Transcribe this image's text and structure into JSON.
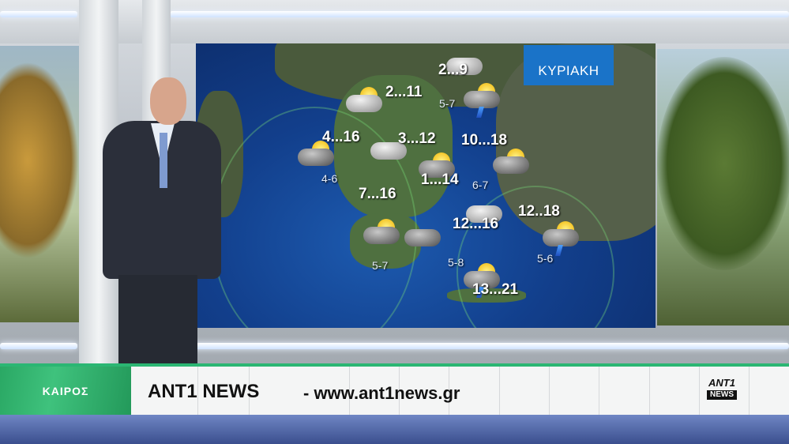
{
  "map": {
    "day": "ΚΥΡΙΑΚΗ",
    "temperatures": [
      "2...9",
      "2...11",
      "4...16",
      "3...12",
      "10...18",
      "1...14",
      "7...16",
      "12..18",
      "12...16",
      "13...21"
    ],
    "winds": [
      "5-7",
      "4-6",
      "6-7",
      "5-7",
      "5-8",
      "5-6"
    ],
    "icons": [
      "cloudy",
      "sun-cloud",
      "sun-cloud-thunderstorm",
      "sun-cloud-rain",
      "cloudy",
      "sun-cloud-rain",
      "sun-cloud-rain",
      "cloudy",
      "sun-cloud-rain",
      "cloudy-rain",
      "sun-cloud-thunderstorm",
      "sun-cloud-thunderstorm"
    ]
  },
  "ticker": {
    "category": "ΚΑΙΡΟΣ",
    "brand": "ANT1 NEWS",
    "url": "- www.ant1news.gr",
    "logo": "ANT1 NEWS",
    "accent": "#2bb673"
  },
  "colors": {
    "day_box": "#1a73c8",
    "sea": "#123f8c"
  }
}
